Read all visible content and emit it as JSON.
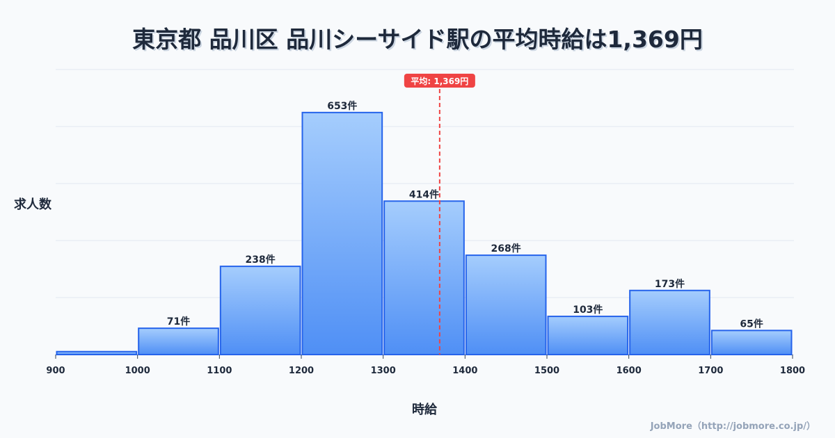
{
  "title": "東京都 品川区 品川シーサイド駅の平均時給は1,369円",
  "credit": "JobMore（http://jobmore.co.jp/）",
  "chart_data": {
    "type": "bar",
    "title": "東京都 品川区 品川シーサイド駅の平均時給は1,369円",
    "xlabel": "時給",
    "ylabel": "求人数",
    "bins": [
      900,
      1000,
      1100,
      1200,
      1300,
      1400,
      1500,
      1600,
      1700,
      1800
    ],
    "values": [
      8,
      71,
      238,
      653,
      414,
      268,
      103,
      173,
      65
    ],
    "labels": [
      "",
      "71件",
      "238件",
      "653件",
      "414件",
      "268件",
      "103件",
      "173件",
      "65件"
    ],
    "tick_labels": [
      "900",
      "1000",
      "1100",
      "1200",
      "1300",
      "1400",
      "1500",
      "1600",
      "1700",
      "1800"
    ],
    "xlim": [
      900,
      1800
    ],
    "ylim": [
      0,
      769
    ],
    "grid": true,
    "mean": 1369,
    "mean_label": "平均: 1,369円",
    "colors": {
      "bar_top": "#a5cdfd",
      "bar_bottom": "#4f8ff5",
      "bar_stroke": "#2563eb",
      "mean": "#ef4444"
    }
  }
}
